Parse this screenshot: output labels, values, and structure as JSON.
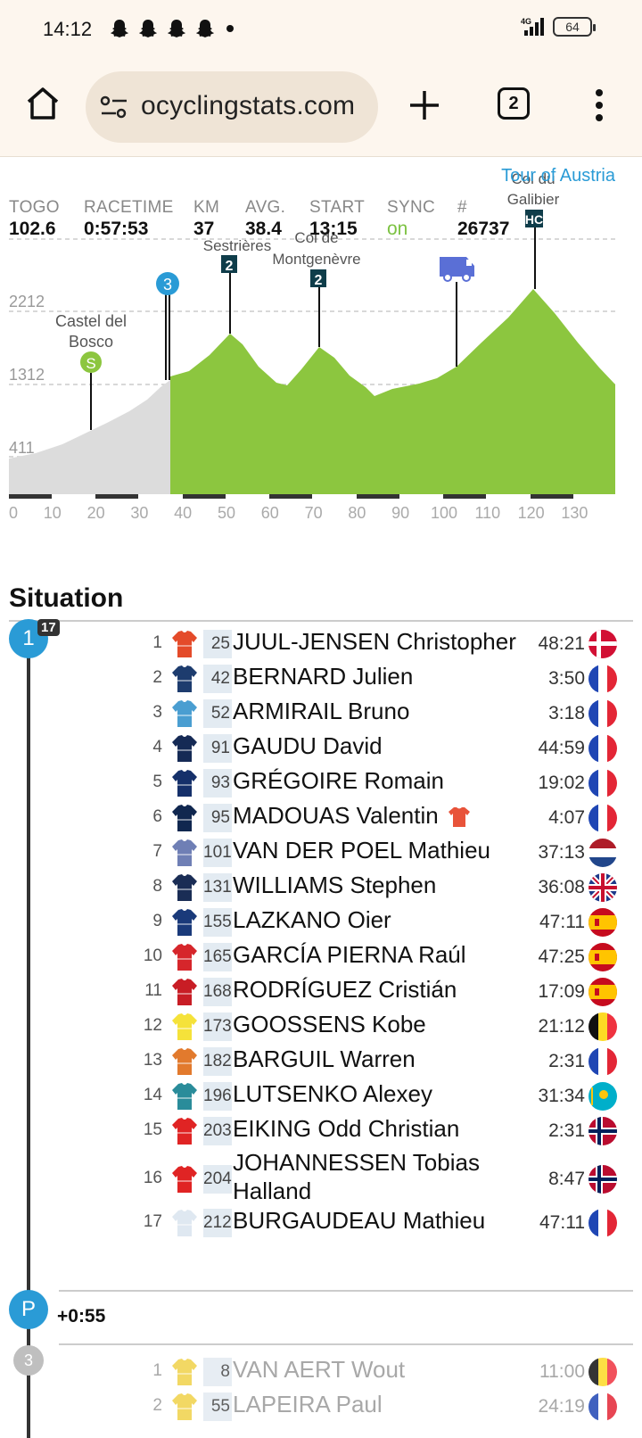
{
  "status": {
    "time": "14:12",
    "network": "4G",
    "battery": "64"
  },
  "browser": {
    "url": "ocyclingstats.com",
    "tabs_count": "2"
  },
  "race": {
    "name": "Tour of Austria"
  },
  "stats": [
    {
      "label": "TOGO",
      "value": "102.6"
    },
    {
      "label": "RACETIME",
      "value": "0:57:53"
    },
    {
      "label": "KM",
      "value": "37"
    },
    {
      "label": "AVG.",
      "value": "38.4"
    },
    {
      "label": "START",
      "value": "13:15"
    },
    {
      "label": "SYNC",
      "value": "on"
    },
    {
      "label": "#",
      "value": "26737"
    }
  ],
  "profile": {
    "elevation_labels": [
      "2212",
      "1312",
      "411"
    ],
    "x_ticks": [
      "0",
      "10",
      "20",
      "30",
      "40",
      "50",
      "60",
      "70",
      "80",
      "90",
      "100",
      "110",
      "120",
      "130"
    ],
    "current_km": 37,
    "climbs": [
      {
        "name_lines": [
          "Castel del",
          "Bosco"
        ],
        "badge": "S",
        "km": 19
      },
      {
        "name_lines": [
          "Sestrières"
        ],
        "badge": "2",
        "km": 51
      },
      {
        "name_lines": [
          "Col de",
          "Montgenèvre"
        ],
        "badge": "2",
        "km": 71
      },
      {
        "name_lines": [
          "Col du",
          "Galibier"
        ],
        "badge": "HC",
        "km": 121
      }
    ],
    "group_marker": "3"
  },
  "situation": {
    "title": "Situation",
    "group1": {
      "badge": "1",
      "count": "17",
      "riders": [
        {
          "pos": "1",
          "bib": "25",
          "name": "JUUL-JENSEN Christopher",
          "time": "48:21",
          "flag": "dk"
        },
        {
          "pos": "2",
          "bib": "42",
          "name": "BERNARD Julien",
          "time": "3:50",
          "flag": "fr"
        },
        {
          "pos": "3",
          "bib": "52",
          "name": "ARMIRAIL Bruno",
          "time": "3:18",
          "flag": "fr"
        },
        {
          "pos": "4",
          "bib": "91",
          "name": "GAUDU David",
          "time": "44:59",
          "flag": "fr"
        },
        {
          "pos": "5",
          "bib": "93",
          "name": "GRÉGOIRE Romain",
          "time": "19:02",
          "flag": "fr"
        },
        {
          "pos": "6",
          "bib": "95",
          "name": "MADOUAS Valentin",
          "time": "4:07",
          "flag": "fr"
        },
        {
          "pos": "7",
          "bib": "101",
          "name": "VAN DER POEL Mathieu",
          "time": "37:13",
          "flag": "nl"
        },
        {
          "pos": "8",
          "bib": "131",
          "name": "WILLIAMS Stephen",
          "time": "36:08",
          "flag": "gb"
        },
        {
          "pos": "9",
          "bib": "155",
          "name": "LAZKANO Oier",
          "time": "47:11",
          "flag": "es"
        },
        {
          "pos": "10",
          "bib": "165",
          "name": "GARCÍA PIERNA Raúl",
          "time": "47:25",
          "flag": "es"
        },
        {
          "pos": "11",
          "bib": "168",
          "name": "RODRÍGUEZ Cristián",
          "time": "17:09",
          "flag": "es"
        },
        {
          "pos": "12",
          "bib": "173",
          "name": "GOOSSENS Kobe",
          "time": "21:12",
          "flag": "be"
        },
        {
          "pos": "13",
          "bib": "182",
          "name": "BARGUIL Warren",
          "time": "2:31",
          "flag": "fr"
        },
        {
          "pos": "14",
          "bib": "196",
          "name": "LUTSENKO Alexey",
          "time": "31:34",
          "flag": "kz"
        },
        {
          "pos": "15",
          "bib": "203",
          "name": "EIKING Odd Christian",
          "time": "2:31",
          "flag": "no"
        },
        {
          "pos": "16",
          "bib": "204",
          "name": "JOHANNESSEN Tobias Halland",
          "time": "8:47",
          "flag": "no"
        },
        {
          "pos": "17",
          "bib": "212",
          "name": "BURGAUDEAU Mathieu",
          "time": "47:11",
          "flag": "fr"
        }
      ]
    },
    "peloton": {
      "badge": "P",
      "gap": "+0:55"
    },
    "group3": {
      "badge": "3",
      "riders": [
        {
          "pos": "1",
          "bib": "8",
          "name": "VAN AERT Wout",
          "time": "11:00",
          "flag": "be"
        },
        {
          "pos": "2",
          "bib": "55",
          "name": "LAPEIRA Paul",
          "time": "24:19",
          "flag": "fr"
        }
      ]
    }
  },
  "colors": {
    "accent": "#2a9bd6",
    "profile_green": "#8cc63f",
    "profile_grey": "#dcdcdc",
    "climb_badge": "#0f3d4a",
    "sync_green": "#7cc242"
  },
  "jersey_colors": [
    "#e44b2a",
    "#1d3c6e",
    "#4a9ed1",
    "#152a55",
    "#15306a",
    "#10274f",
    "#6f7fb5",
    "#1a2d55",
    "#1a3a7a",
    "#d6262b",
    "#c81d25",
    "#f5e23a",
    "#e27a2d",
    "#2a8c9a",
    "#e02424",
    "#e02424",
    "#dfe8f1"
  ]
}
